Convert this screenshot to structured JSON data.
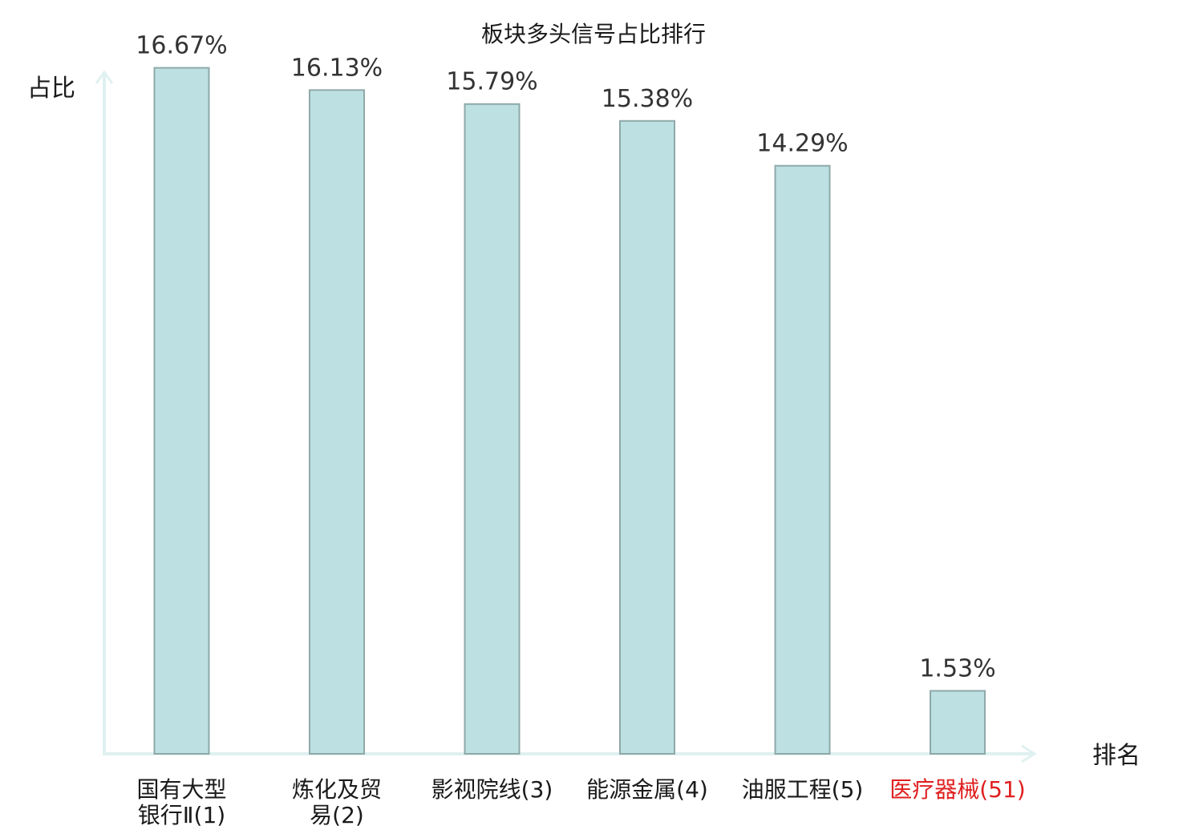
{
  "chart_data": {
    "type": "bar",
    "title": "板块多头信号占比排行",
    "xlabel": "排名",
    "ylabel": "占比",
    "ylim": [
      0,
      17.5
    ],
    "value_suffix": "%",
    "categories": [
      [
        "国有大型",
        "银行Ⅱ(1)"
      ],
      [
        "炼化及贸",
        "易(2)"
      ],
      [
        "影视院线(3)"
      ],
      [
        "能源金属(4)"
      ],
      [
        "油服工程(5)"
      ],
      [
        "医疗器械(51)"
      ]
    ],
    "series": [
      {
        "values": [
          16.67,
          16.13,
          15.79,
          15.38,
          14.29,
          1.53
        ]
      }
    ],
    "value_labels": [
      "16.67%",
      "16.13%",
      "15.79%",
      "15.38%",
      "14.29%",
      "1.53%"
    ],
    "highlight_index": 5,
    "colors": {
      "bar_fill": "#bde0e3",
      "bar_stroke": "#8fa9a9",
      "axis": "#dff1f0",
      "highlight_text": "#e01f1f",
      "text": "#1a1a1a"
    },
    "grid": false,
    "legend": "none"
  }
}
